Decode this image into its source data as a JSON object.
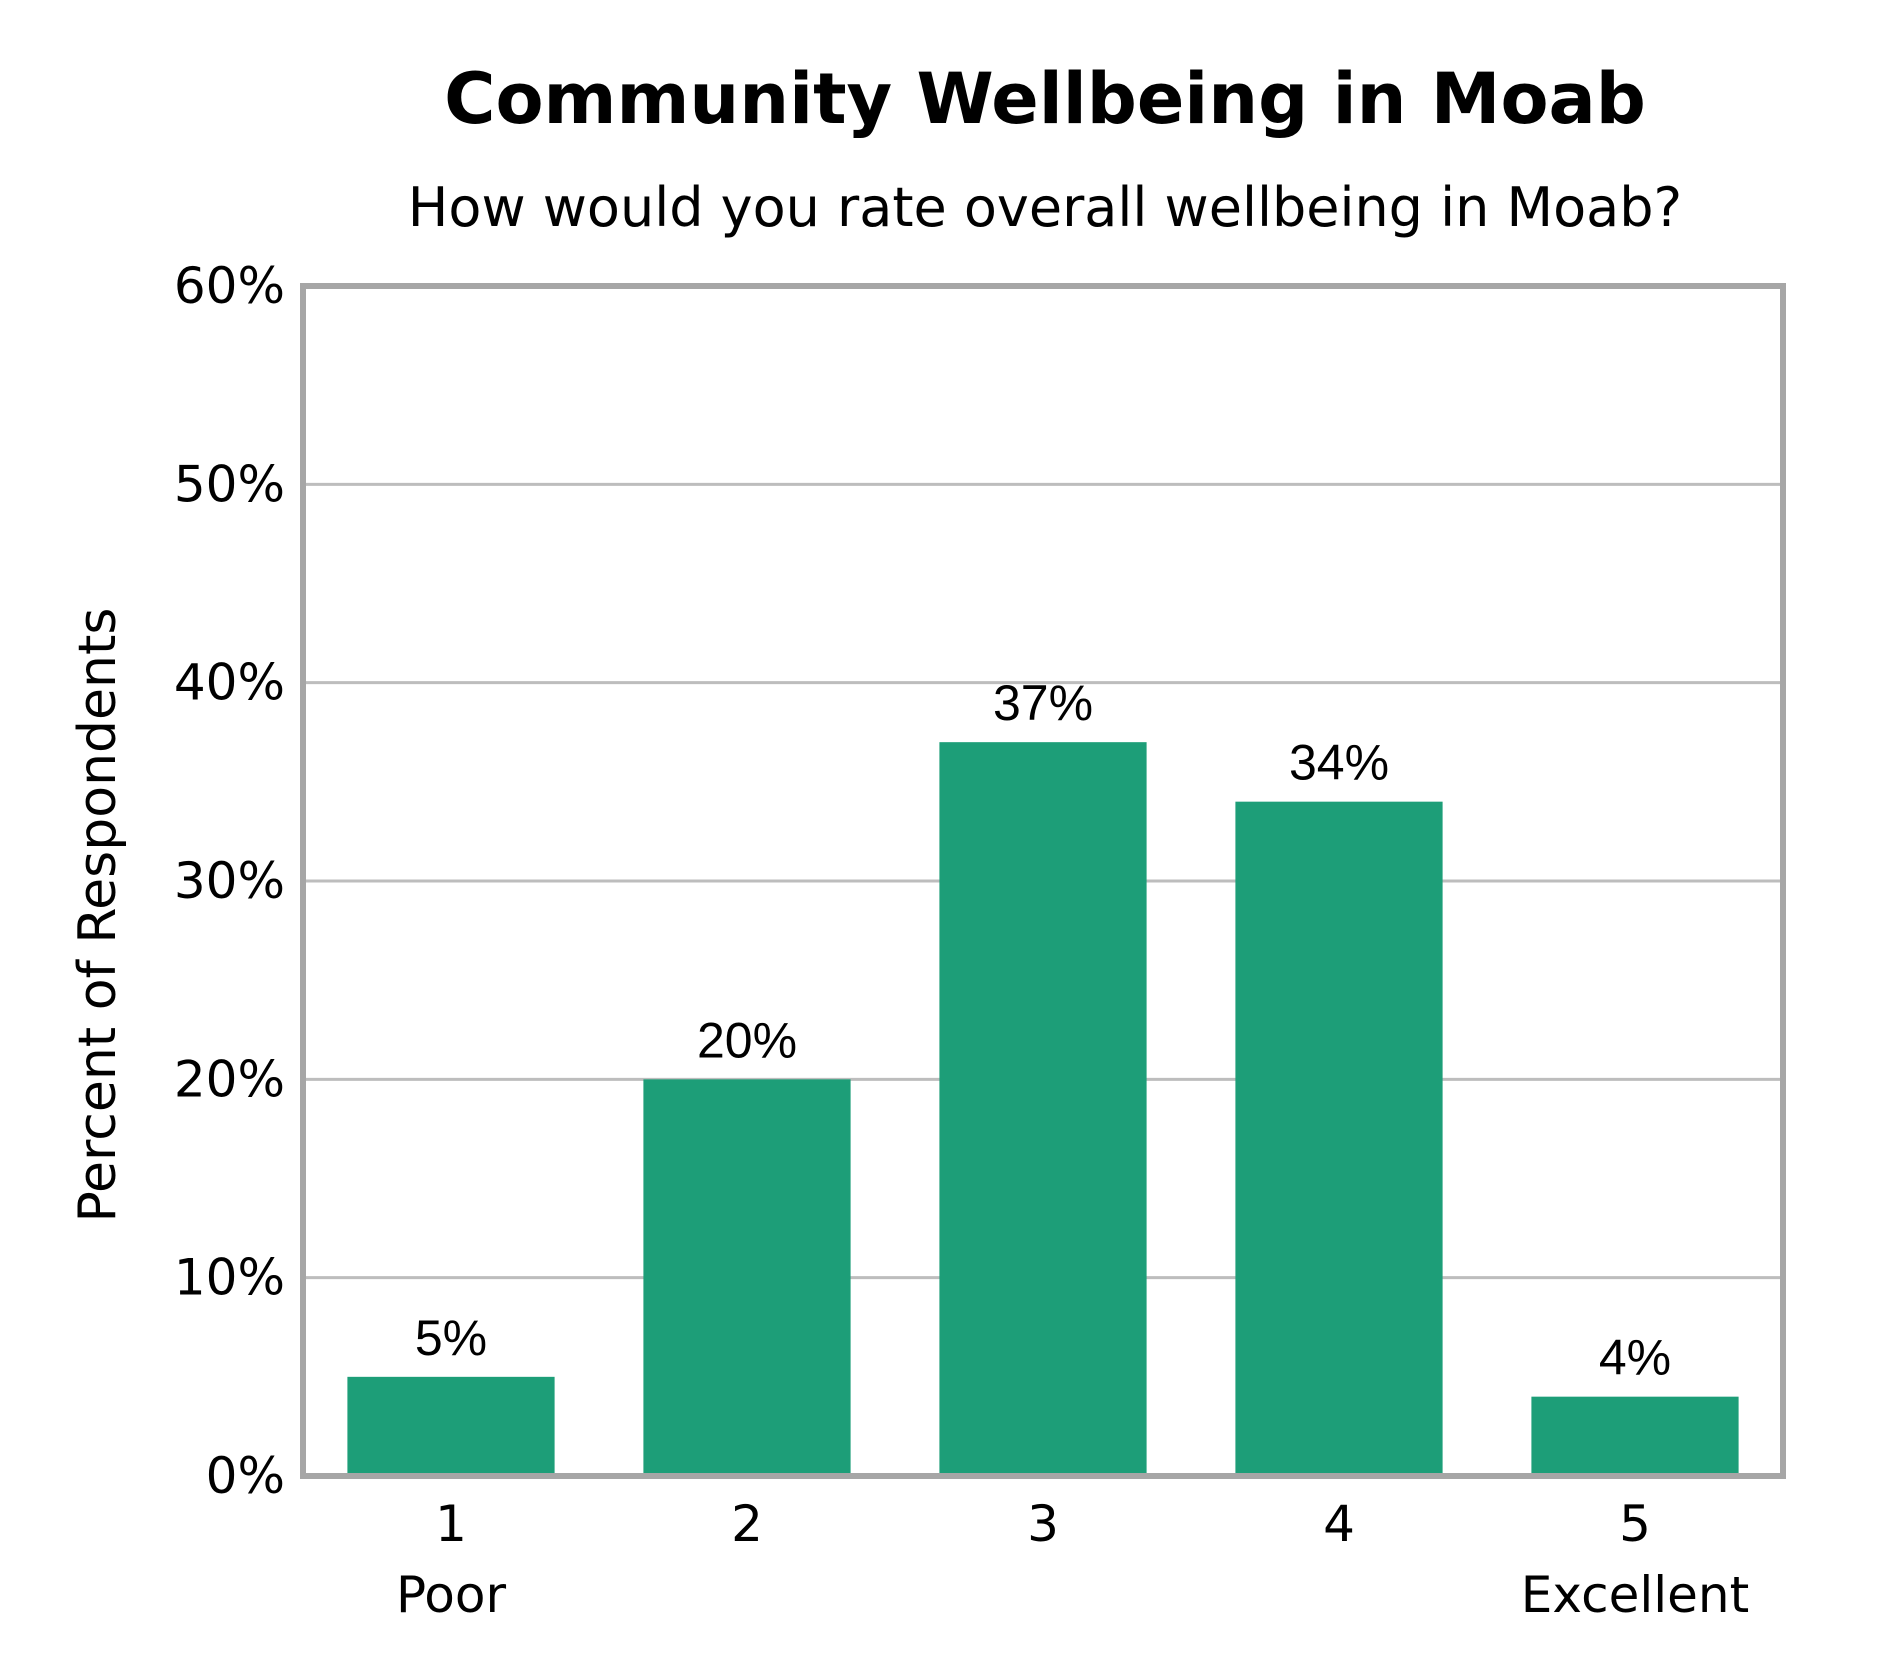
{
  "chart_data": {
    "type": "bar",
    "title": "Community Wellbeing in Moab",
    "subtitle": "How would you rate overall wellbeing in Moab?",
    "xlabel": "",
    "ylabel": "Percent of Respondents",
    "categories": [
      "1",
      "2",
      "3",
      "4",
      "5"
    ],
    "category_sublabels": [
      "Poor",
      "",
      "",
      "",
      "Excellent"
    ],
    "values": [
      5,
      20,
      37,
      34,
      4
    ],
    "data_labels": [
      "5%",
      "20%",
      "37%",
      "34%",
      "4%"
    ],
    "ylim": [
      0,
      60
    ],
    "yticks": [
      0,
      10,
      20,
      30,
      40,
      50,
      60
    ],
    "ytick_labels": [
      "0%",
      "10%",
      "20%",
      "30%",
      "40%",
      "50%",
      "60%"
    ],
    "grid": true,
    "legend": "none",
    "colors": {
      "bar": "#1d9e78",
      "grid": "#bdbdbd",
      "frame": "#a6a6a6",
      "text": "#000000"
    }
  }
}
